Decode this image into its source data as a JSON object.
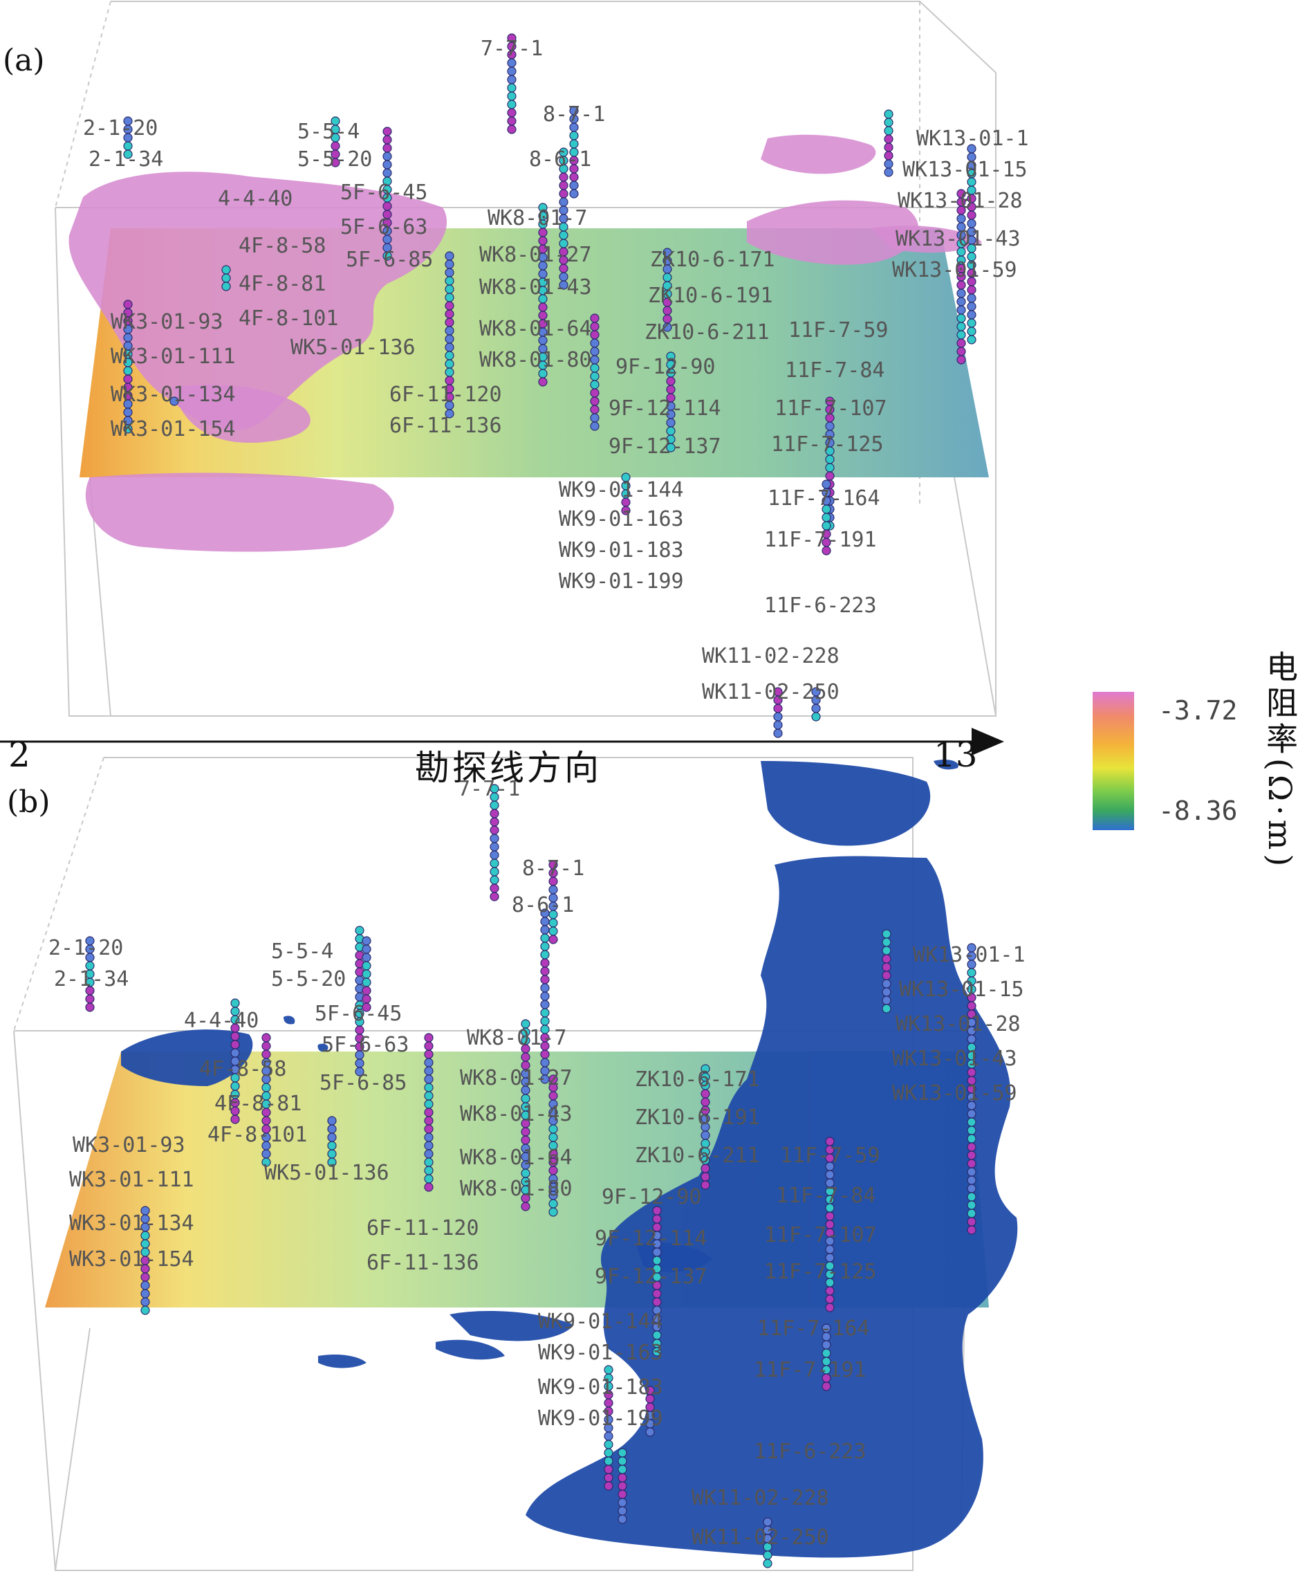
{
  "panel_a": {
    "label": "(a)",
    "wells": [
      {
        "name": "2-1-20"
      },
      {
        "name": "2-1-34"
      },
      {
        "name": "5-5-4"
      },
      {
        "name": "5-5-20"
      },
      {
        "name": "7-7-1"
      },
      {
        "name": "8-7-1"
      },
      {
        "name": "8-6-1"
      },
      {
        "name": "5F-6-45"
      },
      {
        "name": "5F-6-63"
      },
      {
        "name": "5F-6-85"
      },
      {
        "name": "4-4-40"
      },
      {
        "name": "4F-8-58"
      },
      {
        "name": "4F-8-81"
      },
      {
        "name": "4F-8-101"
      },
      {
        "name": "WK8-01-7"
      },
      {
        "name": "WK8-01-27"
      },
      {
        "name": "WK8-01-43"
      },
      {
        "name": "WK8-01-64"
      },
      {
        "name": "WK8-01-80"
      },
      {
        "name": "ZK10-6-171"
      },
      {
        "name": "ZK10-6-191"
      },
      {
        "name": "ZK10-6-211"
      },
      {
        "name": "WK13-01-1"
      },
      {
        "name": "WK13-01-15"
      },
      {
        "name": "WK13-01-28"
      },
      {
        "name": "WK13-01-43"
      },
      {
        "name": "WK13-01-59"
      },
      {
        "name": "WK3-01-93"
      },
      {
        "name": "WK3-01-111"
      },
      {
        "name": "WK3-01-134"
      },
      {
        "name": "WK3-01-154"
      },
      {
        "name": "WK5-01-136"
      },
      {
        "name": "6F-11-120"
      },
      {
        "name": "6F-11-136"
      },
      {
        "name": "9F-12-90"
      },
      {
        "name": "9F-12-114"
      },
      {
        "name": "9F-12-137"
      },
      {
        "name": "11F-7-59"
      },
      {
        "name": "11F-7-84"
      },
      {
        "name": "11F-7-107"
      },
      {
        "name": "11F-7-125"
      },
      {
        "name": "WK9-01-144"
      },
      {
        "name": "WK9-01-163"
      },
      {
        "name": "WK9-01-183"
      },
      {
        "name": "WK9-01-199"
      },
      {
        "name": "11F-7-164"
      },
      {
        "name": "11F-7-191"
      },
      {
        "name": "11F-6-223"
      },
      {
        "name": "WK11-02-228"
      },
      {
        "name": "WK11-02-250"
      }
    ]
  },
  "panel_b": {
    "label": "(b)",
    "wells": [
      {
        "name": "2-1-20"
      },
      {
        "name": "2-1-34"
      },
      {
        "name": "5-5-4"
      },
      {
        "name": "5-5-20"
      },
      {
        "name": "7-7-1"
      },
      {
        "name": "8-7-1"
      },
      {
        "name": "8-6-1"
      },
      {
        "name": "5F-6-45"
      },
      {
        "name": "5F-6-63"
      },
      {
        "name": "5F-6-85"
      },
      {
        "name": "4-4-40"
      },
      {
        "name": "4F-8-58"
      },
      {
        "name": "4F-8-81"
      },
      {
        "name": "4F-8-101"
      },
      {
        "name": "WK8-01-7"
      },
      {
        "name": "WK8-01-27"
      },
      {
        "name": "WK8-01-43"
      },
      {
        "name": "WK8-01-64"
      },
      {
        "name": "WK8-01-80"
      },
      {
        "name": "ZK10-6-171"
      },
      {
        "name": "ZK10-6-191"
      },
      {
        "name": "ZK10-6-211"
      },
      {
        "name": "WK13-01-1"
      },
      {
        "name": "WK13-01-15"
      },
      {
        "name": "WK13-01-28"
      },
      {
        "name": "WK13-01-43"
      },
      {
        "name": "WK13-01-59"
      },
      {
        "name": "WK3-01-93"
      },
      {
        "name": "WK3-01-111"
      },
      {
        "name": "WK3-01-134"
      },
      {
        "name": "WK3-01-154"
      },
      {
        "name": "WK5-01-136"
      },
      {
        "name": "6F-11-120"
      },
      {
        "name": "6F-11-136"
      },
      {
        "name": "9F-12-90"
      },
      {
        "name": "9F-12-114"
      },
      {
        "name": "9F-12-137"
      },
      {
        "name": "11F-7-59"
      },
      {
        "name": "11F-7-84"
      },
      {
        "name": "11F-7-107"
      },
      {
        "name": "11F-7-125"
      },
      {
        "name": "WK9-01-144"
      },
      {
        "name": "WK9-01-163"
      },
      {
        "name": "WK9-01-183"
      },
      {
        "name": "WK9-01-199"
      },
      {
        "name": "11F-7-164"
      },
      {
        "name": "11F-7-191"
      },
      {
        "name": "11F-6-223"
      },
      {
        "name": "WK11-02-228"
      },
      {
        "name": "WK11-02-250"
      }
    ]
  },
  "axis": {
    "start": "2",
    "end": "13",
    "label": "勘探线方向"
  },
  "colorbar": {
    "max_label": "-3.72",
    "min_label": "-8.36",
    "unit": "电阻率(Ω·m)",
    "gradient": [
      "#e07ad0",
      "#f08a6a",
      "#f4b23a",
      "#e8e43a",
      "#7ccc4a",
      "#3aa860",
      "#2f6fd0"
    ]
  },
  "colors": {
    "high_resistivity_body": "#d68bd0",
    "low_resistivity_body": "#1f4aa8",
    "well_point_blue": "#5a7ed8",
    "well_point_cyan": "#33c8c8",
    "well_point_magenta": "#b23ab8"
  }
}
